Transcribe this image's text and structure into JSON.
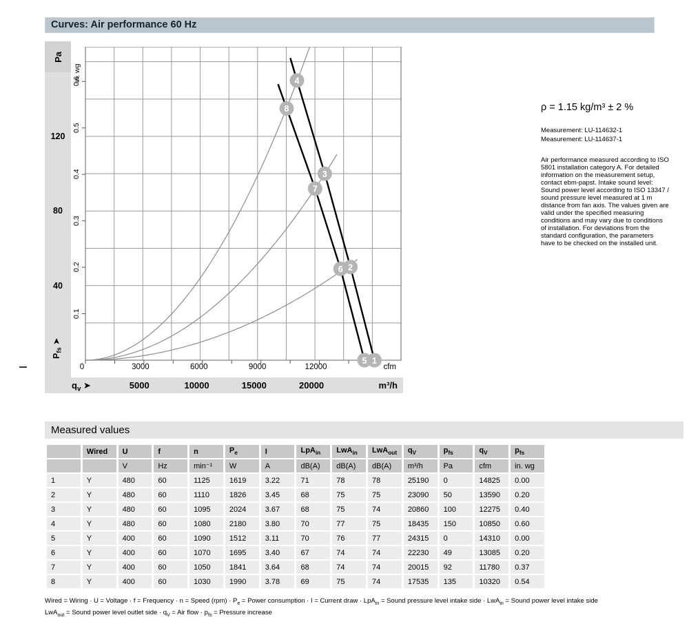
{
  "title_bar": {
    "text": "Curves: Air performance 60 Hz",
    "bg": "#bac5ce"
  },
  "side_panel": {
    "density": "ρ = 1.15 kg/m³ ± 2 %",
    "measurements": [
      "Measurement: LU-114632-1",
      "Measurement: LU-114637-1"
    ],
    "note": "Air performance measured according to ISO 5801 installation category A. For detailed information on the measurement setup, contact ebm-papst. Intake sound level: Sound power level according to ISO 13347 / sound pressure level measured at 1 m distance from fan axis. The values given are valid under the specified measuring conditions and may vary due to conditions of installation. For deviations from the standard configuration, the parameters have to be checked on the installed unit."
  },
  "chart_data": [
    {
      "type": "line",
      "title": "Air performance 60 Hz",
      "ylabel_primary": "Pa",
      "ylabel_secondary": "in. wg",
      "xlabel_primary": "cfm",
      "xlabel_secondary": "m³/h",
      "x_flow_label": "q~v~ ➤",
      "y_pressure_label": "P~fs~ ➤",
      "x_domain_m3h": [
        0,
        27500
      ],
      "x_grid_step_m3h": 2500,
      "x_ticks_m3h": [
        5000,
        10000,
        15000,
        20000
      ],
      "x_ticks_cfm": [
        0,
        3000,
        6000,
        9000,
        12000
      ],
      "x_tick_step_cfm": 1500,
      "m3h_to_cfm": 0.58858,
      "y_domain_pa": [
        0,
        168
      ],
      "y_grid_step_pa": 20,
      "y_ticks_pa": [
        40,
        80,
        120
      ],
      "y_ticks_inwg": [
        0.1,
        0.2,
        0.3,
        0.4,
        0.5,
        0.6
      ],
      "inwg_to_pa": 249.089,
      "fan_curves": [
        {
          "name": "480 V",
          "extend_to_pa": 162,
          "points_cfm_pa": [
            [
              10850,
              150
            ],
            [
              12275,
              100
            ],
            [
              13590,
              50
            ],
            [
              14825,
              0
            ]
          ]
        },
        {
          "name": "400 V",
          "extend_to_pa": 148,
          "points_cfm_pa": [
            [
              10320,
              135
            ],
            [
              11780,
              92
            ],
            [
              13085,
              49
            ],
            [
              14310,
              0
            ]
          ]
        }
      ],
      "system_resistance_curves": [
        {
          "k_pa_per_cfm2": 1.27e-06,
          "q_end_cfm": 11500
        },
        {
          "k_pa_per_cfm2": 6.63e-07,
          "q_end_cfm": 12900
        },
        {
          "k_pa_per_cfm2": 2.78e-07,
          "q_end_cfm": 13950
        }
      ],
      "operating_points": [
        {
          "label": "8",
          "cfm": 10320,
          "pa": 135
        },
        {
          "label": "7",
          "cfm": 11780,
          "pa": 92
        },
        {
          "label": "6",
          "cfm": 13085,
          "pa": 49
        },
        {
          "label": "5",
          "cfm": 14310,
          "pa": 0
        },
        {
          "label": "4",
          "cfm": 10850,
          "pa": 150
        },
        {
          "label": "3",
          "cfm": 12275,
          "pa": 100
        },
        {
          "label": "2",
          "cfm": 13590,
          "pa": 50
        },
        {
          "label": "1",
          "cfm": 14825,
          "pa": 0
        }
      ],
      "colors": {
        "grid": "#999999",
        "border": "#7d7d7d",
        "fan_curve": "#000000",
        "system_curve": "#8c8c8c",
        "bubble": "#b5b5b5",
        "bubble_text": "#ffffff"
      }
    },
    {
      "type": "table",
      "title": "Measured values",
      "columns": [
        "",
        "Wired",
        "U",
        "f",
        "n",
        "P~e~",
        "I",
        "LpA~in~",
        "LwA~in~",
        "LwA~out~",
        "q~V~",
        "p~fs~",
        "q~V~",
        "p~fs~"
      ],
      "units": [
        "",
        "",
        "V",
        "Hz",
        "min⁻¹",
        "W",
        "A",
        "dB(A)",
        "dB(A)",
        "dB(A)",
        "m³/h",
        "Pa",
        "cfm",
        "in. wg"
      ],
      "rows": [
        [
          "1",
          "Y",
          "480",
          "60",
          "1125",
          "1619",
          "3.22",
          "71",
          "78",
          "78",
          "25190",
          "0",
          "14825",
          "0.00"
        ],
        [
          "2",
          "Y",
          "480",
          "60",
          "1110",
          "1826",
          "3.45",
          "68",
          "75",
          "75",
          "23090",
          "50",
          "13590",
          "0.20"
        ],
        [
          "3",
          "Y",
          "480",
          "60",
          "1095",
          "2024",
          "3.67",
          "68",
          "75",
          "74",
          "20860",
          "100",
          "12275",
          "0.40"
        ],
        [
          "4",
          "Y",
          "480",
          "60",
          "1080",
          "2180",
          "3.80",
          "70",
          "77",
          "75",
          "18435",
          "150",
          "10850",
          "0.60"
        ],
        [
          "5",
          "Y",
          "400",
          "60",
          "1090",
          "1512",
          "3.11",
          "70",
          "76",
          "77",
          "24315",
          "0",
          "14310",
          "0.00"
        ],
        [
          "6",
          "Y",
          "400",
          "60",
          "1070",
          "1695",
          "3.40",
          "67",
          "74",
          "74",
          "22230",
          "49",
          "13085",
          "0.20"
        ],
        [
          "7",
          "Y",
          "400",
          "60",
          "1050",
          "1841",
          "3.64",
          "68",
          "74",
          "74",
          "20015",
          "92",
          "11780",
          "0.37"
        ],
        [
          "8",
          "Y",
          "400",
          "60",
          "1030",
          "1990",
          "3.78",
          "69",
          "75",
          "74",
          "17535",
          "135",
          "10320",
          "0.54"
        ]
      ]
    }
  ],
  "footnotes": [
    "Wired = Wiring · U = Voltage · f = Frequency · n = Speed (rpm) · P~e~ = Power consumption · I = Current draw · LpA~in~ = Sound pressure level intake side · LwA~in~ = Sound power level intake side",
    "LwA~out~ = Sound power level outlet side · q~V~ = Air flow · p~fs~ = Pressure increase"
  ]
}
